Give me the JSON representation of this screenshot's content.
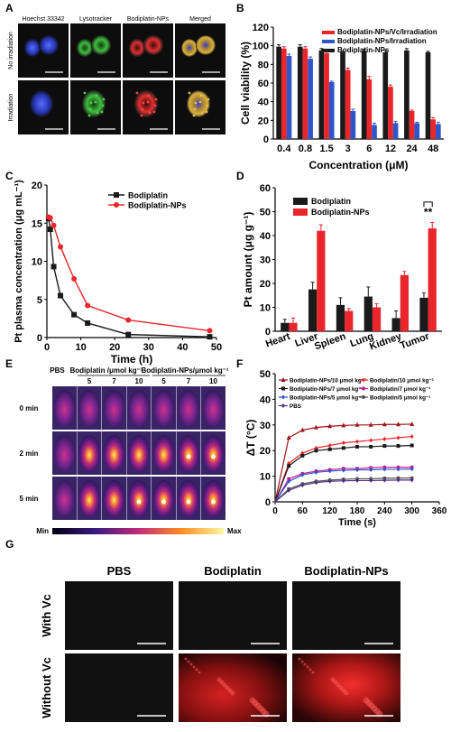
{
  "panels": {
    "A": {
      "letter": "A",
      "col_labels": [
        "Hoechst 33342",
        "Lysotracker",
        "Bodiplatin-NPs",
        "Merged"
      ],
      "row_labels": [
        "No irradiation",
        "Irradiation"
      ]
    },
    "B": {
      "letter": "B"
    },
    "C": {
      "letter": "C"
    },
    "D": {
      "letter": "D",
      "significance": "**"
    },
    "E": {
      "letter": "E",
      "group1": "Bodiplatin /μmol kg⁻¹",
      "group2": "Bodiplatin-NPs/μmol kg⁻¹",
      "col_labels": [
        "PBS",
        "5",
        "7",
        "10",
        "5",
        "7",
        "10"
      ],
      "row_labels": [
        "0 min",
        "2 min",
        "5 min"
      ],
      "scale_min": "Min",
      "scale_max": "Max"
    },
    "F": {
      "letter": "F"
    },
    "G": {
      "letter": "G",
      "col_labels": [
        "PBS",
        "Bodiplatin",
        "Bodiplatin-NPs"
      ],
      "row_labels": [
        "With Vc",
        "Without Vc"
      ]
    }
  },
  "colors": {
    "red": "#e8262b",
    "blue": "#2f55c8",
    "black": "#1a1a1a",
    "dark_red": "#a0141c",
    "magenta": "#c0209a",
    "purple": "#4a2f86"
  },
  "chart_data": [
    {
      "id": "B",
      "type": "bar",
      "categories": [
        "0.4",
        "0.8",
        "1.5",
        "3",
        "6",
        "12",
        "24",
        "48"
      ],
      "xlabel": "Concentration (μM)",
      "ylabel": "Cell viability (%)",
      "ylim": [
        0,
        120
      ],
      "yticks": [
        0,
        20,
        40,
        60,
        80,
        100,
        120
      ],
      "legend_position": "top-right",
      "series": [
        {
          "name": "Bodiplatin-NPs/Vc/Irradiation",
          "color": "#e8262b",
          "values": [
            97,
            97,
            92,
            74,
            64,
            56,
            30,
            21
          ],
          "errors": [
            2,
            2,
            2,
            2,
            3,
            2,
            1,
            2
          ]
        },
        {
          "name": "Bodiplatin-NPs/Irradiation",
          "color": "#2f55c8",
          "values": [
            89,
            86,
            61,
            30,
            15,
            17,
            17,
            16
          ],
          "errors": [
            2,
            2,
            1,
            2,
            2,
            2,
            1,
            2
          ]
        },
        {
          "name": "Bodiplatin-NPs",
          "color": "#1a1a1a",
          "values": [
            99,
            99,
            95,
            93,
            94,
            93,
            95,
            93
          ],
          "errors": [
            2,
            2,
            2,
            1,
            2,
            2,
            2,
            1
          ]
        }
      ]
    },
    {
      "id": "C",
      "type": "line",
      "xlabel": "Time (h)",
      "ylabel": "Pt plasma concentration (μg mL⁻¹)",
      "xlim": [
        0,
        50
      ],
      "ylim": [
        0,
        20
      ],
      "xticks": [
        0,
        10,
        20,
        30,
        40,
        50
      ],
      "yticks": [
        0,
        5,
        10,
        15,
        20
      ],
      "legend_position": "top-right",
      "series": [
        {
          "name": "Bodiplatin",
          "color": "#1a1a1a",
          "marker": "square",
          "x": [
            0.5,
            1,
            2,
            4,
            8,
            12,
            24,
            48
          ],
          "y": [
            15.6,
            14.2,
            9.3,
            5.5,
            3.0,
            1.9,
            0.4,
            0.1
          ]
        },
        {
          "name": "Bodiplatin-NPs",
          "color": "#e8262b",
          "marker": "circle",
          "x": [
            0.5,
            1,
            2,
            4,
            8,
            12,
            24,
            48
          ],
          "y": [
            15.8,
            15.7,
            14.7,
            11.9,
            7.7,
            4.2,
            2.3,
            0.9
          ]
        }
      ]
    },
    {
      "id": "D",
      "type": "bar",
      "categories": [
        "Heart",
        "Liver",
        "Spleen",
        "Lung",
        "Kidney",
        "Tumor"
      ],
      "ylabel": "Pt amount (μg g⁻¹)",
      "ylim": [
        0,
        60
      ],
      "yticks": [
        0,
        10,
        20,
        30,
        40,
        50,
        60
      ],
      "legend_position": "top-left",
      "series": [
        {
          "name": "Bodiplatin",
          "color": "#1a1a1a",
          "values": [
            3.5,
            17.5,
            11,
            14.5,
            5.5,
            14
          ],
          "errors": [
            1.5,
            3,
            3,
            4,
            3,
            2
          ]
        },
        {
          "name": "Bodiplatin-NPs",
          "color": "#e8262b",
          "values": [
            3.5,
            42,
            8.5,
            10,
            23.5,
            43
          ],
          "errors": [
            2,
            2.5,
            1,
            1.5,
            1.5,
            2.5
          ]
        }
      ]
    },
    {
      "id": "F",
      "type": "line",
      "xlabel": "Time (s)",
      "ylabel": "ΔT (°C)",
      "xlim": [
        0,
        360
      ],
      "ylim": [
        0,
        50
      ],
      "xticks": [
        0,
        60,
        120,
        180,
        240,
        300,
        360
      ],
      "yticks": [
        0,
        10,
        20,
        30,
        40,
        50
      ],
      "legend_position": "top",
      "series": [
        {
          "name": "Bodiplatin-NPs/10 μmol kg⁻¹",
          "color": "#a0141c",
          "marker": "triangle",
          "x": [
            0,
            30,
            60,
            90,
            120,
            150,
            180,
            210,
            240,
            270,
            300
          ],
          "y": [
            0,
            25,
            28,
            29,
            29.5,
            29.8,
            30,
            30,
            30.2,
            30.2,
            30.3
          ]
        },
        {
          "name": "Bodiplatin/10 μmol kg⁻¹",
          "color": "#e8262b",
          "marker": "diamond",
          "x": [
            0,
            30,
            60,
            90,
            120,
            150,
            180,
            210,
            240,
            270,
            300
          ],
          "y": [
            0,
            15,
            19,
            21,
            22,
            23,
            23.5,
            24,
            24.5,
            25,
            25.5
          ]
        },
        {
          "name": "Bodiplatin-NPs/7 μmol kg⁻¹",
          "color": "#1a1a1a",
          "marker": "square",
          "x": [
            0,
            30,
            60,
            90,
            120,
            150,
            180,
            210,
            240,
            270,
            300
          ],
          "y": [
            0,
            14,
            18,
            20,
            20.5,
            21,
            21.5,
            21.5,
            21.8,
            21.8,
            22
          ]
        },
        {
          "name": "Bodiplatin/7 μmol kg⁻¹",
          "color": "#c0209a",
          "marker": "circle",
          "x": [
            0,
            30,
            60,
            90,
            120,
            150,
            180,
            210,
            240,
            270,
            300
          ],
          "y": [
            0,
            9,
            11,
            12,
            12.5,
            13,
            13,
            13.3,
            13.5,
            13.5,
            13.5
          ]
        },
        {
          "name": "Bodiplatin-NPs/5 μmol kg⁻¹",
          "color": "#2f55c8",
          "marker": "diamond",
          "x": [
            0,
            30,
            60,
            90,
            120,
            150,
            180,
            210,
            240,
            270,
            300
          ],
          "y": [
            0,
            8,
            10.5,
            11.5,
            12,
            12.3,
            12.5,
            12.5,
            12.7,
            12.7,
            12.8
          ]
        },
        {
          "name": "Bodiplatin/5 μmol kg⁻¹",
          "color": "#555555",
          "marker": "circle",
          "x": [
            0,
            30,
            60,
            90,
            120,
            150,
            180,
            210,
            240,
            270,
            300
          ],
          "y": [
            0,
            5,
            7,
            8,
            8.5,
            8.8,
            9,
            9,
            9.2,
            9.3,
            9.3
          ]
        },
        {
          "name": "PBS",
          "color": "#4a2f86",
          "marker": "diamond",
          "x": [
            0,
            30,
            60,
            90,
            120,
            150,
            180,
            210,
            240,
            270,
            300
          ],
          "y": [
            0,
            4.5,
            6.5,
            7.5,
            8,
            8.2,
            8.3,
            8.3,
            8.4,
            8.5,
            8.5
          ]
        }
      ]
    }
  ]
}
